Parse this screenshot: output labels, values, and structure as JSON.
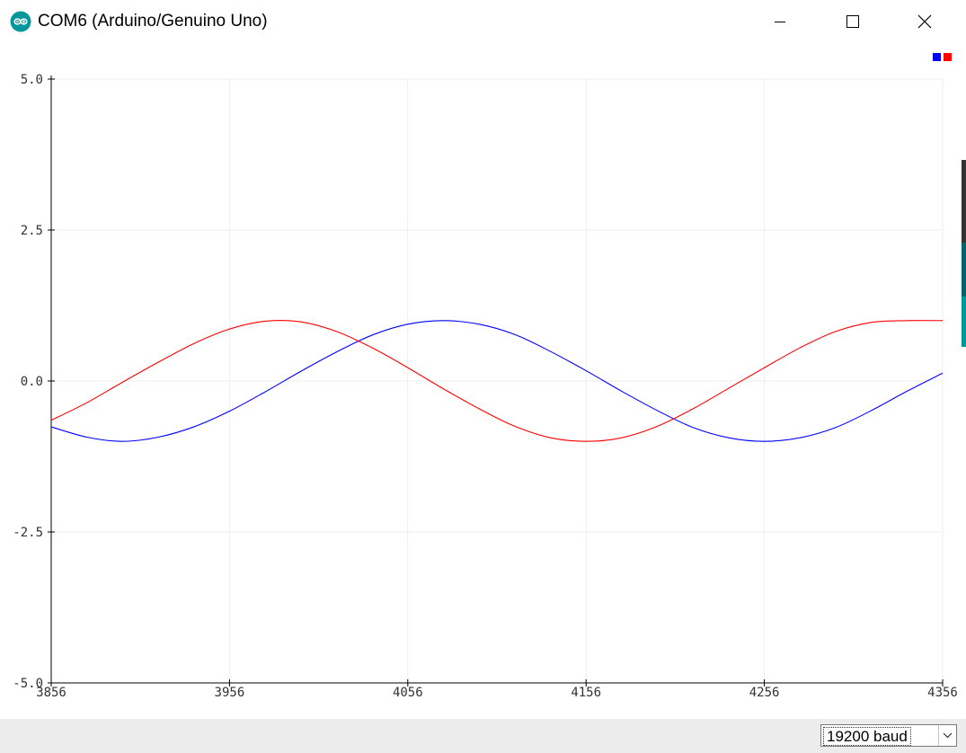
{
  "window": {
    "title": "COM6 (Arduino/Genuino Uno)"
  },
  "window_controls": {
    "minimize_icon": "minimize-icon",
    "maximize_icon": "maximize-icon",
    "close_icon": "close-icon"
  },
  "legend": {
    "colors": [
      "#0000ff",
      "#ff0000"
    ]
  },
  "baud": {
    "selected": "19200 baud"
  },
  "chart_data": {
    "type": "line",
    "title": "",
    "xlabel": "",
    "ylabel": "",
    "ylim": [
      -5.0,
      5.0
    ],
    "xlim": [
      3856,
      4356
    ],
    "x_ticks": [
      "3856",
      "3956",
      "4056",
      "4156",
      "4256",
      "4356"
    ],
    "y_ticks": [
      "5.0",
      "2.5",
      "0.0",
      "-2.5",
      "-5.0"
    ],
    "grid": true,
    "legend_placement": "top-right",
    "series": [
      {
        "color": "#0000ff",
        "x": [
          3856,
          3876,
          3896,
          3916,
          3936,
          3956,
          3976,
          3996,
          4016,
          4036,
          4056,
          4076,
          4096,
          4116,
          4136,
          4156,
          4176,
          4196,
          4216,
          4236,
          4256,
          4276,
          4296,
          4316,
          4336,
          4356
        ],
        "values": [
          -0.76,
          -0.93,
          -1.0,
          -0.93,
          -0.76,
          -0.5,
          -0.18,
          0.16,
          0.48,
          0.76,
          0.94,
          1.0,
          0.94,
          0.77,
          0.49,
          0.17,
          -0.17,
          -0.49,
          -0.77,
          -0.94,
          -1.0,
          -0.94,
          -0.77,
          -0.49,
          -0.17,
          0.13
        ]
      },
      {
        "color": "#ff0000",
        "x": [
          3856,
          3876,
          3896,
          3916,
          3936,
          3956,
          3976,
          3996,
          4016,
          4036,
          4056,
          4076,
          4096,
          4116,
          4136,
          4156,
          4176,
          4196,
          4216,
          4236,
          4256,
          4276,
          4296,
          4316,
          4336,
          4356
        ],
        "values": [
          -0.65,
          -0.36,
          -0.02,
          0.31,
          0.62,
          0.86,
          0.99,
          0.98,
          0.82,
          0.55,
          0.22,
          -0.13,
          -0.46,
          -0.75,
          -0.94,
          -1.0,
          -0.94,
          -0.75,
          -0.46,
          -0.12,
          0.22,
          0.55,
          0.82,
          0.97,
          1.0,
          1.0
        ]
      }
    ]
  }
}
